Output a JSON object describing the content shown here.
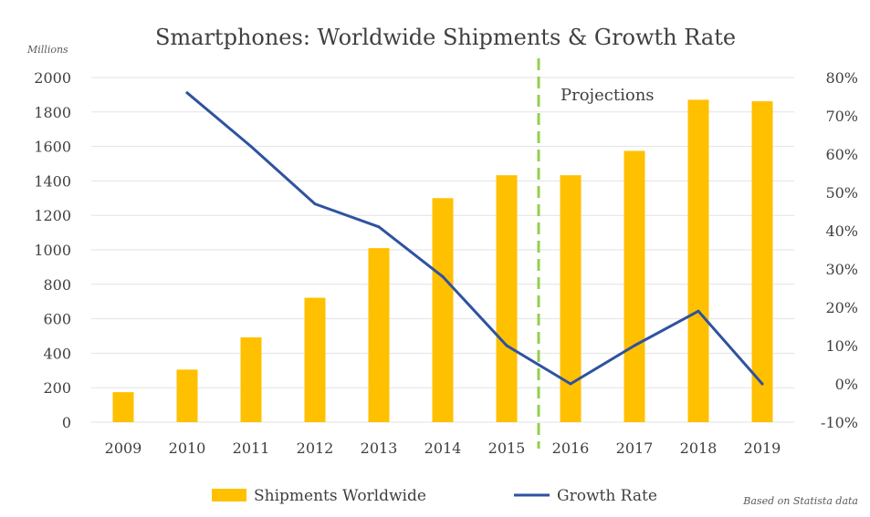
{
  "chart_data": {
    "type": "bar",
    "title": "Smartphones: Worldwide Shipments & Growth Rate",
    "y_unit_label": "Millions",
    "categories": [
      "2009",
      "2010",
      "2011",
      "2012",
      "2013",
      "2014",
      "2015",
      "2016",
      "2017",
      "2018",
      "2019"
    ],
    "series": [
      {
        "name": "Shipments Worldwide",
        "kind": "bar",
        "axis": "left",
        "color": "#FFC000",
        "values": [
          174,
          305,
          492,
          722,
          1010,
          1300,
          1433,
          1433,
          1574,
          1871,
          1862
        ]
      },
      {
        "name": "Growth Rate",
        "kind": "line",
        "axis": "right",
        "color": "#2F52A0",
        "values": [
          null,
          0.76,
          0.62,
          0.47,
          0.41,
          0.28,
          0.1,
          0.0,
          0.1,
          0.19,
          0.0
        ]
      }
    ],
    "y_left": {
      "min": 0,
      "max": 2000,
      "ticks": [
        "0",
        "200",
        "400",
        "600",
        "800",
        "1000",
        "1200",
        "1400",
        "1600",
        "1800",
        "2000"
      ]
    },
    "y_right": {
      "min": -0.1,
      "max": 0.8,
      "ticks": [
        "-10%",
        "0%",
        "10%",
        "20%",
        "30%",
        "40%",
        "50%",
        "60%",
        "70%",
        "80%"
      ]
    },
    "gridlines": true,
    "projection_divider": {
      "between": [
        "2015",
        "2016"
      ],
      "color": "#92D050",
      "style": "dashed",
      "label": "Projections"
    },
    "legend": {
      "placement": "bottom",
      "entries": [
        "Shipments Worldwide",
        "Growth Rate"
      ]
    },
    "source_note": "Based on Statista data"
  }
}
